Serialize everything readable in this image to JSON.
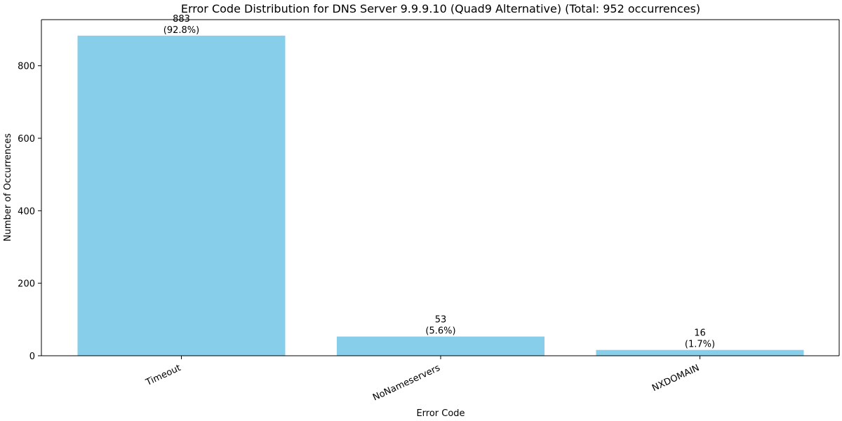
{
  "chart_data": {
    "type": "bar",
    "title": "Error Code Distribution for DNS Server 9.9.9.10 (Quad9 Alternative) (Total: 952 occurrences)",
    "xlabel": "Error Code",
    "ylabel": "Number of Occurrences",
    "categories": [
      "Timeout",
      "NoNameservers",
      "NXDOMAIN"
    ],
    "values": [
      883,
      53,
      16
    ],
    "value_labels": [
      "883",
      "53",
      "16"
    ],
    "percent_labels": [
      "(92.8%)",
      "(5.6%)",
      "(1.7%)"
    ],
    "ylim": [
      0,
      927.15
    ],
    "yticks": [
      0,
      200,
      400,
      600,
      800
    ],
    "ytick_labels": [
      "0",
      "200",
      "400",
      "600",
      "800"
    ],
    "bar_color": "#87ceeb",
    "grid": false,
    "legend": "none"
  }
}
